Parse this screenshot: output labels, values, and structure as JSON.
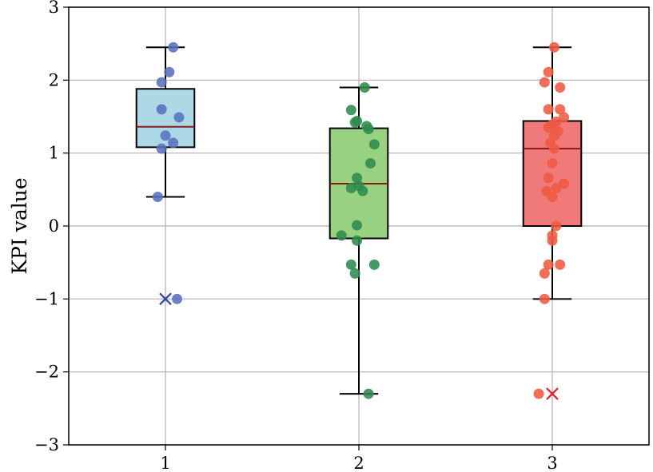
{
  "chart_data": {
    "type": "box",
    "title": "",
    "xlabel": "",
    "ylabel": "KPI value",
    "ylim": [
      -3,
      3
    ],
    "grid": true,
    "categories": [
      "1",
      "2",
      "3"
    ],
    "y_ticks": [
      {
        "value": -3,
        "label": "−3"
      },
      {
        "value": -2,
        "label": "−2"
      },
      {
        "value": -1,
        "label": "−1"
      },
      {
        "value": 0,
        "label": "0"
      },
      {
        "value": 1,
        "label": "1"
      },
      {
        "value": 2,
        "label": "2"
      },
      {
        "value": 3,
        "label": "3"
      }
    ],
    "series": [
      {
        "category": "1",
        "box_color": "#add8e6",
        "point_color": "#5a6fbe",
        "median_color": "#8b1a1a",
        "outlier_color": "#2a4aa0",
        "whisker_low": 0.4,
        "q1": 1.08,
        "median": 1.36,
        "q3": 1.88,
        "whisker_high": 2.45,
        "outliers": [
          -1.0
        ],
        "points": [
          {
            "x": 1.04,
            "y": 2.45
          },
          {
            "x": 1.02,
            "y": 2.11
          },
          {
            "x": 0.98,
            "y": 1.97
          },
          {
            "x": 1.07,
            "y": 1.49
          },
          {
            "x": 0.98,
            "y": 1.6
          },
          {
            "x": 1.0,
            "y": 1.24
          },
          {
            "x": 1.04,
            "y": 1.14
          },
          {
            "x": 0.98,
            "y": 1.06
          },
          {
            "x": 0.96,
            "y": 0.4
          },
          {
            "x": 1.06,
            "y": -1.0
          }
        ]
      },
      {
        "category": "2",
        "box_color": "#98d281",
        "point_color": "#2e8b4e",
        "median_color": "#8b1a1a",
        "outlier_color": "#2e8b4e",
        "whisker_low": -2.3,
        "q1": -0.17,
        "median": 0.58,
        "q3": 1.34,
        "whisker_high": 1.9,
        "outliers": [],
        "points": [
          {
            "x": 2.03,
            "y": 1.9
          },
          {
            "x": 1.96,
            "y": 1.59
          },
          {
            "x": 1.99,
            "y": 1.44
          },
          {
            "x": 1.98,
            "y": 1.42
          },
          {
            "x": 2.04,
            "y": 1.37
          },
          {
            "x": 2.05,
            "y": 1.33
          },
          {
            "x": 2.08,
            "y": 1.12
          },
          {
            "x": 2.06,
            "y": 0.86
          },
          {
            "x": 1.99,
            "y": 0.66
          },
          {
            "x": 2.0,
            "y": 0.55
          },
          {
            "x": 1.96,
            "y": 0.52
          },
          {
            "x": 2.02,
            "y": 0.48
          },
          {
            "x": 1.99,
            "y": 0.01
          },
          {
            "x": 1.91,
            "y": -0.13
          },
          {
            "x": 1.99,
            "y": -0.2
          },
          {
            "x": 2.08,
            "y": -0.53
          },
          {
            "x": 1.96,
            "y": -0.53
          },
          {
            "x": 1.98,
            "y": -0.65
          },
          {
            "x": 2.05,
            "y": -2.3
          }
        ]
      },
      {
        "category": "3",
        "box_color": "#f07a7a",
        "point_color": "#ef5a42",
        "median_color": "#8b1a1a",
        "outlier_color": "#e5202a",
        "whisker_low": -1.0,
        "q1": 0.0,
        "median": 1.06,
        "q3": 1.44,
        "whisker_high": 2.45,
        "outliers": [
          -2.3
        ],
        "points": [
          {
            "x": 3.01,
            "y": 2.45
          },
          {
            "x": 2.98,
            "y": 2.11
          },
          {
            "x": 2.96,
            "y": 1.97
          },
          {
            "x": 3.04,
            "y": 1.9
          },
          {
            "x": 2.98,
            "y": 1.6
          },
          {
            "x": 3.04,
            "y": 1.6
          },
          {
            "x": 3.06,
            "y": 1.49
          },
          {
            "x": 3.02,
            "y": 1.43
          },
          {
            "x": 3.0,
            "y": 1.39
          },
          {
            "x": 2.98,
            "y": 1.35
          },
          {
            "x": 3.03,
            "y": 1.3
          },
          {
            "x": 3.01,
            "y": 1.24
          },
          {
            "x": 2.99,
            "y": 1.14
          },
          {
            "x": 3.01,
            "y": 1.06
          },
          {
            "x": 3.0,
            "y": 0.86
          },
          {
            "x": 2.98,
            "y": 0.66
          },
          {
            "x": 3.06,
            "y": 0.58
          },
          {
            "x": 3.02,
            "y": 0.52
          },
          {
            "x": 2.97,
            "y": 0.48
          },
          {
            "x": 3.0,
            "y": 0.4
          },
          {
            "x": 3.02,
            "y": 0.0
          },
          {
            "x": 3.0,
            "y": -0.13
          },
          {
            "x": 3.0,
            "y": -0.2
          },
          {
            "x": 2.98,
            "y": -0.53
          },
          {
            "x": 3.04,
            "y": -0.53
          },
          {
            "x": 2.96,
            "y": -0.65
          },
          {
            "x": 2.96,
            "y": -1.0
          },
          {
            "x": 2.93,
            "y": -2.3
          }
        ]
      }
    ]
  }
}
